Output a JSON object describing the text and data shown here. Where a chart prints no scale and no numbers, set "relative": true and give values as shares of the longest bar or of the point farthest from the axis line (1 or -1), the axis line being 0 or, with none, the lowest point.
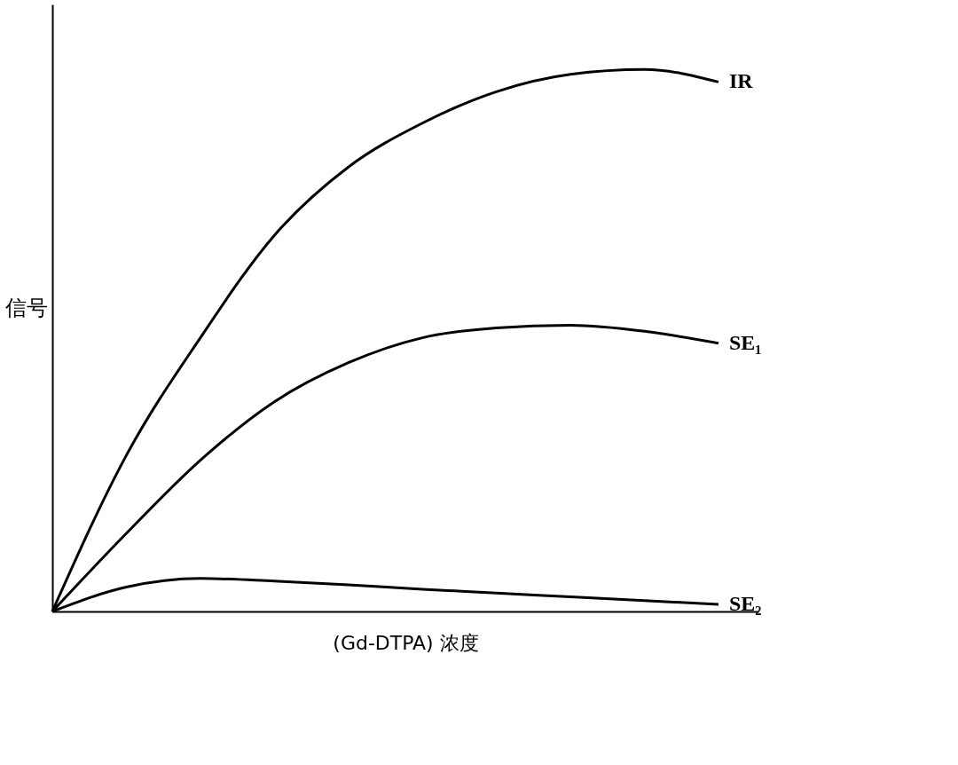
{
  "chart_data": {
    "type": "line",
    "relative": true,
    "xlabel": "(Gd-DTPA) 浓度",
    "ylabel": "信号",
    "categories": [
      null,
      null,
      null,
      null,
      null,
      null,
      null,
      null,
      null,
      null
    ],
    "series": [
      {
        "name": "IR",
        "color": "#000000",
        "values": [
          0,
          0.288,
          0.505,
          0.694,
          0.82,
          0.901,
          0.959,
          0.991,
          1.0,
          0.977
        ]
      },
      {
        "name": "SE₁",
        "color": "#000000",
        "values": [
          0,
          0.144,
          0.279,
          0.387,
          0.459,
          0.505,
          0.523,
          0.528,
          0.517,
          0.495
        ]
      },
      {
        "name": "SE₂",
        "color": "#000000",
        "values": [
          0,
          0.045,
          0.061,
          0.056,
          0.049,
          0.041,
          0.034,
          0.027,
          0.02,
          0.013
        ]
      }
    ],
    "grid": false,
    "legend": false,
    "marker": "none",
    "line_style": "solid"
  }
}
